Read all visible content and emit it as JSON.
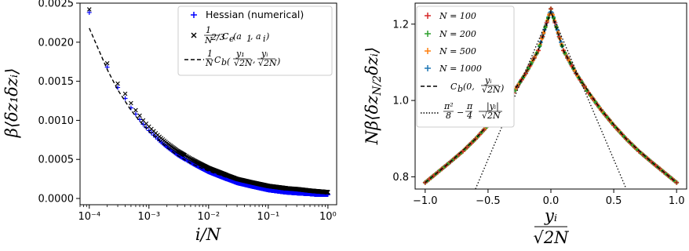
{
  "chart_data": [
    {
      "type": "scatter",
      "xscale": "log",
      "xlim": [
        7e-05,
        1.4
      ],
      "ylim": [
        -8e-05,
        0.0025
      ],
      "xlabel": "i/N",
      "ylabel": "β⟨δz₁δzᵢ⟩",
      "xticks": [
        "10⁻⁴",
        "10⁻³",
        "10⁻²",
        "10⁻¹",
        "10⁰"
      ],
      "yticks": [
        "0.0000",
        "0.0005",
        "0.0010",
        "0.0015",
        "0.0020",
        "0.0025"
      ],
      "legend_position": "top-right",
      "series": [
        {
          "name": "Hessian (numerical)",
          "marker": "+",
          "color": "#0000ff",
          "x": [
            0.0001,
            0.0002,
            0.0003,
            0.0004,
            0.0005,
            0.0006,
            0.0008,
            0.001,
            0.0015,
            0.002,
            0.003,
            0.005,
            0.007,
            0.01,
            0.02,
            0.03,
            0.05,
            0.1,
            0.2,
            0.3,
            0.5,
            0.7,
            1.0
          ],
          "y": [
            0.00238,
            0.00168,
            0.00142,
            0.00128,
            0.00116,
            0.00108,
            0.00095,
            0.00087,
            0.00074,
            0.00066,
            0.00056,
            0.00046,
            0.0004,
            0.00034,
            0.00025,
            0.0002,
            0.00016,
            0.00011,
            8e-05,
            7e-05,
            6e-05,
            5e-05,
            5e-05
          ]
        },
        {
          "name": "1/N^{2/3} C_e(a_1, a_i)",
          "marker": "x",
          "color": "#000000",
          "x": [
            0.0001,
            0.0002,
            0.0003,
            0.0004,
            0.0005,
            0.0006,
            0.0008,
            0.001,
            0.0015,
            0.002,
            0.003,
            0.005,
            0.007,
            0.01,
            0.02,
            0.03,
            0.05,
            0.1,
            0.2,
            0.3,
            0.5,
            0.7,
            1.0
          ],
          "y": [
            0.00242,
            0.00173,
            0.00147,
            0.00134,
            0.00122,
            0.00113,
            0.001,
            0.00092,
            0.00079,
            0.00071,
            0.00061,
            0.00051,
            0.00045,
            0.00039,
            0.0003,
            0.00025,
            0.00021,
            0.00016,
            0.00013,
            0.00012,
            0.0001,
            9e-05,
            8e-05
          ]
        },
        {
          "name": "1/N C_b(y_1/√(2N), y_i/√(2N))",
          "line": "dashed",
          "color": "#000000",
          "x": [
            0.0001,
            0.0002,
            0.0003,
            0.0005,
            0.0007,
            0.001,
            0.002,
            0.003,
            0.005,
            0.007,
            0.01,
            0.02,
            0.05,
            0.1,
            0.2,
            0.5,
            1.0
          ],
          "y": [
            0.00218,
            0.00165,
            0.00139,
            0.00113,
            0.00099,
            0.00086,
            0.00065,
            0.00055,
            0.00045,
            0.0004,
            0.00035,
            0.00027,
            0.00019,
            0.00015,
            0.00012,
            0.0001,
            9e-05
          ]
        }
      ]
    },
    {
      "type": "scatter",
      "xlim": [
        -1.08,
        1.08
      ],
      "ylim": [
        0.768,
        1.255
      ],
      "xlabel": "yᵢ / √(2N)",
      "ylabel": "Nβ⟨δz_{N/2}δzᵢ⟩",
      "xticks": [
        "−1.0",
        "−0.5",
        "0.0",
        "0.5",
        "1.0"
      ],
      "yticks": [
        "0.8",
        "1.0",
        "1.2"
      ],
      "legend_position": "top-left",
      "series": [
        {
          "name": "N = 100",
          "marker": "+",
          "color": "#d62728",
          "x": [
            -1.0,
            -0.9,
            -0.8,
            -0.7,
            -0.6,
            -0.5,
            -0.4,
            -0.3,
            -0.2,
            -0.1,
            0.0,
            0.1,
            0.2,
            0.3,
            0.4,
            0.5,
            0.6,
            0.7,
            0.8,
            0.9,
            1.0
          ],
          "y": [
            0.785,
            0.812,
            0.839,
            0.867,
            0.899,
            0.935,
            0.975,
            1.02,
            1.071,
            1.131,
            1.24,
            1.131,
            1.071,
            1.02,
            0.975,
            0.935,
            0.899,
            0.867,
            0.839,
            0.812,
            0.785
          ]
        },
        {
          "name": "N = 200",
          "marker": "+",
          "color": "#2ca02c",
          "x": [
            -1.0,
            -0.5,
            0.0,
            0.5,
            1.0
          ],
          "y": [
            0.785,
            0.935,
            1.238,
            0.935,
            0.785
          ]
        },
        {
          "name": "N = 500",
          "marker": "+",
          "color": "#ff7f0e",
          "x": [
            -1.0,
            -0.5,
            0.0,
            0.5,
            1.0
          ],
          "y": [
            0.785,
            0.935,
            1.236,
            0.935,
            0.785
          ]
        },
        {
          "name": "N = 1000",
          "marker": "+",
          "color": "#1f77b4",
          "x": [
            -1.0,
            -0.5,
            0.0,
            0.5,
            1.0
          ],
          "y": [
            0.785,
            0.935,
            1.234,
            0.935,
            0.785
          ]
        },
        {
          "name": "C_b(0, y_i/√(2N))",
          "line": "dashed",
          "color": "#000000",
          "x": [
            -1.0,
            -0.8,
            -0.6,
            -0.4,
            -0.2,
            -0.1,
            0.0,
            0.1,
            0.2,
            0.4,
            0.6,
            0.8,
            1.0
          ],
          "y": [
            0.785,
            0.839,
            0.899,
            0.975,
            1.071,
            1.131,
            1.234,
            1.131,
            1.071,
            0.975,
            0.899,
            0.839,
            0.785
          ]
        },
        {
          "name": "π²/8 − (π/4)|y_i|/√(2N)",
          "line": "dotted",
          "color": "#000000",
          "x": [
            -0.6,
            0.0,
            0.6
          ],
          "y": [
            0.762,
            1.2337,
            0.762
          ]
        }
      ]
    }
  ],
  "legend1": {
    "hessian": "Hessian (numerical)",
    "ce_prefix": "1",
    "ce_den": "N",
    "ce_exp": "2/3",
    "ce_body": "C",
    "ce_sub": "e",
    "ce_args": "(a",
    "ce_args2": ", a",
    "ce_args3": ")",
    "cb_frac_num": "1",
    "cb_frac_den": "N",
    "cb_body": "C",
    "cb_sub": "b"
  },
  "legend2": {
    "n100": "N = 100",
    "n200": "N = 200",
    "n500": "N = 500",
    "n1000": "N = 1000",
    "cb": "C",
    "cb_sub": "b",
    "cb_args": "(0,",
    "lin_a": "π²",
    "lin_b": "8",
    "lin_c": "π",
    "lin_d": "4",
    "lin_e": "|yᵢ|",
    "lin_f": "√2N"
  }
}
